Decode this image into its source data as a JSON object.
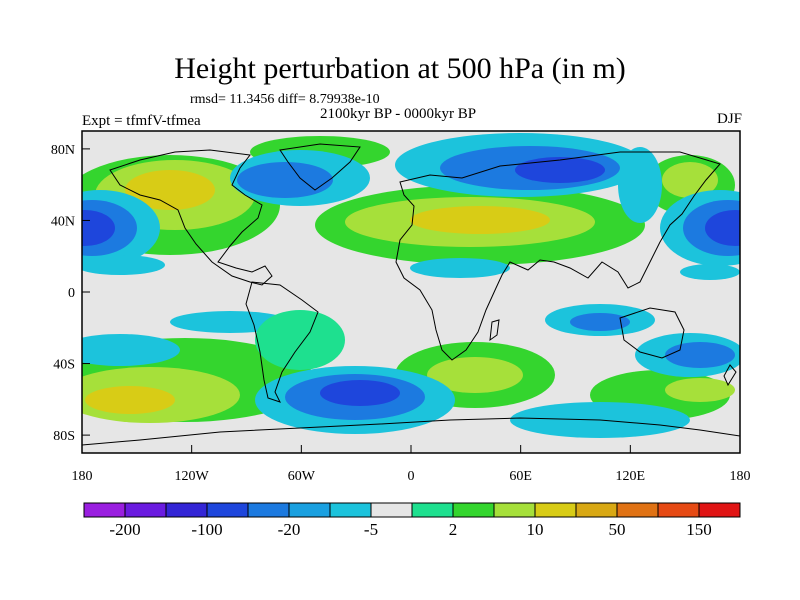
{
  "title": "Height perturbation at 500 hPa (in m)",
  "stats": "rmsd= 11.3456 diff= 8.79938e-10",
  "period": "2100kyr BP - 0000kyr BP",
  "experiment": "Expt = tfmfV-tfmea",
  "season": "DJF",
  "map": {
    "projection": "cylindrical-equidistant",
    "lon_range": [
      -180,
      180
    ],
    "lat_range": [
      -90,
      90
    ],
    "x_ticks": [
      {
        "value": -180,
        "label": "180"
      },
      {
        "value": -120,
        "label": "120W"
      },
      {
        "value": -60,
        "label": "60W"
      },
      {
        "value": 0,
        "label": "0"
      },
      {
        "value": 60,
        "label": "60E"
      },
      {
        "value": 120,
        "label": "120E"
      },
      {
        "value": 180,
        "label": "180"
      }
    ],
    "y_ticks": [
      {
        "value": 80,
        "label": "80N"
      },
      {
        "value": 40,
        "label": "40N"
      },
      {
        "value": 0,
        "label": "0"
      },
      {
        "value": -40,
        "label": "40S"
      },
      {
        "value": -80,
        "label": "80S"
      }
    ],
    "background_color": "#e6e6e6",
    "coastline_color": "#000000"
  },
  "colorbar": {
    "colors": [
      "#9a1fe0",
      "#6a1be0",
      "#3325d6",
      "#1e46dc",
      "#1c7ae0",
      "#1aa0e0",
      "#1cc3dc",
      "#e6e6e6",
      "#1ee08f",
      "#34d52e",
      "#a6e03a",
      "#d8cc16",
      "#d8a814",
      "#e07214",
      "#e64a14",
      "#e01414"
    ],
    "labels": [
      "-200",
      "-100",
      "-20",
      "-5",
      "2",
      "10",
      "50",
      "150"
    ]
  }
}
